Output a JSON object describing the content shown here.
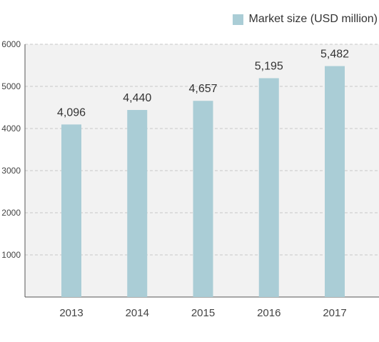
{
  "chart_data": {
    "type": "bar",
    "categories": [
      "2013",
      "2014",
      "2015",
      "2016",
      "2017"
    ],
    "series": [
      {
        "name": "Market size (USD million)",
        "values": [
          4096,
          4440,
          4657,
          5195,
          5482
        ],
        "color": "#aacdd6"
      }
    ],
    "data_labels": [
      "4,096",
      "4,440",
      "4,657",
      "5,195",
      "5,482"
    ],
    "ylim": [
      0,
      6000
    ],
    "yticks": [
      1000,
      2000,
      3000,
      4000,
      5000,
      6000
    ],
    "ytick_labels": [
      "1000",
      "2000",
      "3000",
      "4000",
      "5000",
      "6000"
    ],
    "title": "",
    "xlabel": "",
    "ylabel": "",
    "grid": true,
    "legend_position": "top-right",
    "plot_background": "#f2f2f2"
  }
}
